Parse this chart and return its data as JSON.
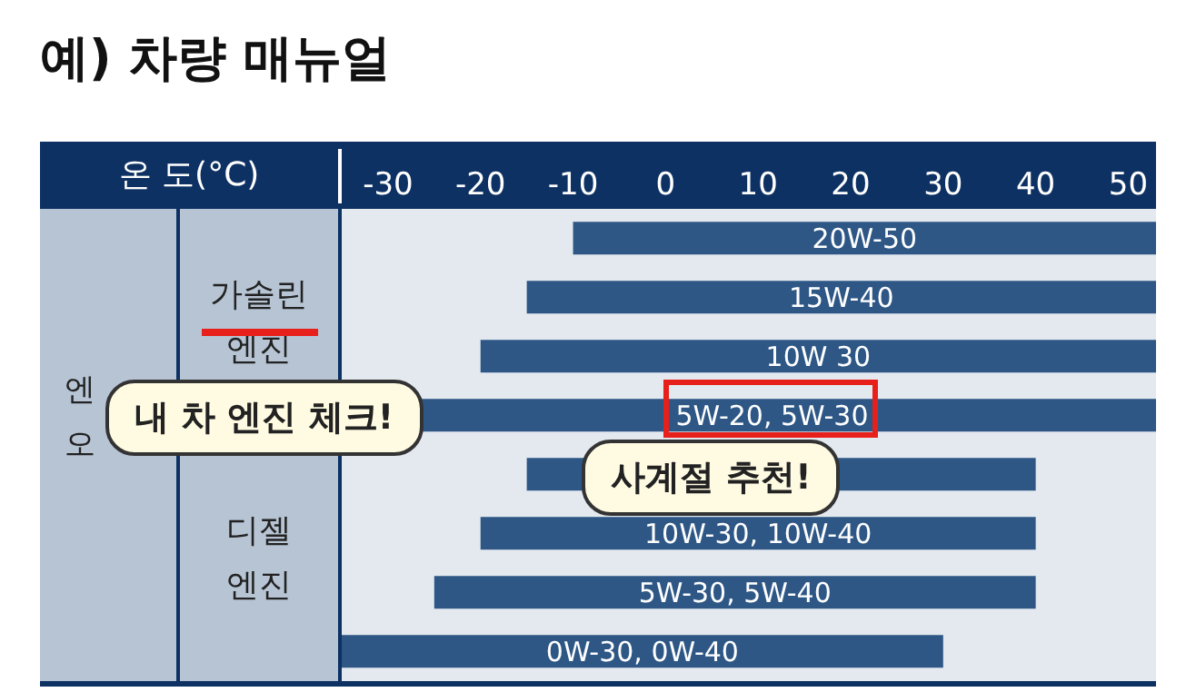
{
  "chart_data": {
    "type": "bar",
    "orientation": "horizontal",
    "title": "예) 차량 매뉴얼",
    "xlabel": "온 도(°C)",
    "categories": [
      "20W-50",
      "15W-40",
      "10W 30",
      "5W-20, 5W-30",
      null,
      "10W-30, 10W-40",
      "5W-30, 5W-40",
      "0W-30, 0W-40"
    ],
    "base": [
      -10,
      -15,
      -20,
      -30,
      -15,
      -20,
      -25,
      -35
    ],
    "values": [
      63,
      68,
      73,
      83,
      55,
      60,
      65,
      65
    ],
    "color": "#2e5786",
    "xlim": [
      -35,
      53
    ],
    "xticks": [
      -30,
      -20,
      -10,
      0,
      10,
      20,
      30,
      40,
      50
    ],
    "grid": false,
    "legend": false,
    "annotations": [
      "가솔린 엔진",
      "디젤 엔진",
      "엔 오",
      "내 차 엔진 체크!",
      "사계절 추천!"
    ]
  }
}
